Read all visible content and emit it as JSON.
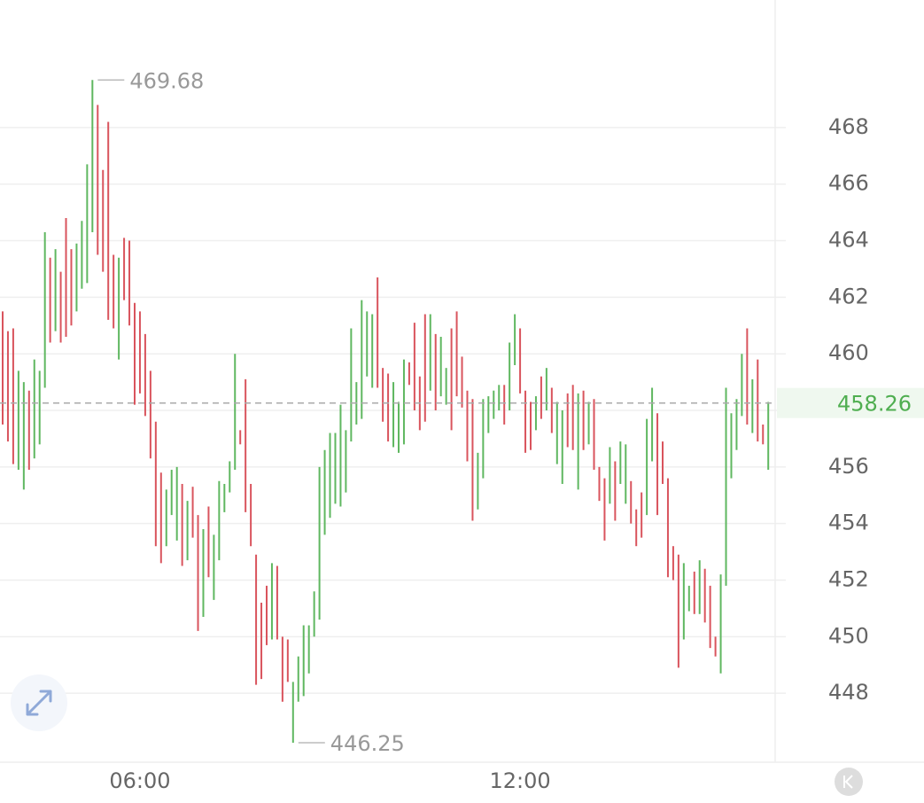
{
  "chart_data": {
    "type": "ohlc-range",
    "categories": [
      null,
      null,
      null,
      null,
      null,
      null,
      null,
      null,
      null,
      null,
      null,
      null,
      null,
      null,
      null,
      null,
      null,
      null,
      null,
      null,
      null,
      null,
      null,
      null,
      null,
      null,
      "06:00",
      null,
      null,
      null,
      null,
      null,
      null,
      null,
      null,
      null,
      null,
      null,
      null,
      null,
      null,
      null,
      null,
      null,
      null,
      null,
      null,
      null,
      null,
      null,
      null,
      null,
      null,
      null,
      null,
      null,
      null,
      null,
      null,
      null,
      null,
      null,
      null,
      null,
      null,
      null,
      null,
      null,
      null,
      null,
      null,
      null,
      null,
      null,
      null,
      null,
      null,
      null,
      null,
      null,
      null,
      null,
      null,
      null,
      null,
      null,
      null,
      null,
      null,
      null,
      null,
      null,
      null,
      null,
      null,
      null,
      null,
      null,
      "12:00",
      null,
      null,
      null,
      null,
      null,
      null,
      null,
      null,
      null,
      null,
      null,
      null,
      null,
      null,
      null,
      null,
      null,
      null,
      null,
      null,
      null,
      null,
      null,
      null,
      null,
      null,
      null,
      null,
      null,
      null,
      null,
      null,
      null,
      null,
      null,
      null,
      null,
      null,
      null,
      null,
      null,
      null,
      null,
      null,
      null,
      null,
      null
    ],
    "high": [
      461.5,
      460.8,
      460.9,
      459.4,
      459.0,
      458.7,
      459.8,
      459.4,
      464.3,
      463.4,
      463.7,
      462.9,
      464.8,
      463.7,
      463.9,
      464.7,
      466.7,
      469.68,
      468.8,
      466.5,
      468.2,
      463.5,
      463.4,
      464.1,
      464.0,
      461.8,
      461.5,
      460.7,
      459.4,
      457.6,
      455.8,
      455.2,
      455.9,
      456.0,
      455.4,
      454.8,
      455.3,
      454.3,
      453.8,
      454.6,
      453.6,
      455.5,
      455.4,
      456.2,
      460.0,
      457.3,
      459.1,
      455.4,
      452.9,
      451.2,
      451.8,
      452.6,
      452.5,
      450.0,
      449.9,
      448.4,
      449.3,
      450.4,
      450.4,
      451.6,
      456.0,
      456.6,
      457.2,
      457.2,
      458.2,
      457.3,
      460.9,
      459.0,
      461.9,
      461.5,
      461.4,
      462.7,
      459.5,
      459.3,
      459.0,
      458.3,
      459.8,
      459.7,
      461.1,
      459.2,
      461.4,
      461.4,
      460.7,
      460.6,
      459.5,
      460.9,
      461.5,
      459.9,
      458.7,
      458.4,
      456.5,
      458.4,
      458.5,
      458.7,
      458.9,
      458.9,
      460.4,
      461.4,
      460.9,
      458.7,
      458.3,
      458.5,
      459.2,
      459.5,
      458.8,
      458.3,
      458.0,
      458.6,
      458.9,
      458.6,
      458.7,
      458.3,
      458.4,
      456.0,
      455.6,
      456.7,
      456.2,
      456.9,
      456.8,
      455.5,
      454.5,
      455.1,
      457.7,
      458.8,
      457.9,
      456.9,
      455.6,
      453.2,
      452.9,
      452.6,
      451.8,
      452.3,
      452.7,
      452.4,
      451.8,
      450.0,
      452.2,
      458.8,
      457.9,
      458.4,
      460.0,
      460.9,
      459.1,
      459.8,
      457.5,
      458.3
    ],
    "low": [
      457.5,
      456.9,
      456.1,
      455.9,
      455.2,
      455.9,
      456.3,
      456.8,
      458.8,
      460.4,
      460.8,
      460.4,
      460.6,
      461.0,
      461.5,
      462.3,
      462.5,
      464.3,
      463.5,
      462.9,
      461.2,
      460.9,
      459.8,
      461.9,
      461.0,
      458.2,
      458.6,
      457.8,
      456.3,
      453.2,
      452.6,
      453.2,
      454.3,
      453.4,
      452.5,
      452.7,
      453.5,
      450.2,
      450.7,
      452.1,
      451.3,
      452.7,
      454.4,
      455.1,
      455.9,
      456.8,
      454.4,
      453.2,
      448.3,
      448.5,
      449.7,
      449.9,
      449.9,
      447.7,
      448.4,
      446.25,
      447.7,
      447.9,
      448.7,
      450.0,
      450.6,
      453.6,
      454.2,
      454.7,
      454.6,
      455.1,
      456.9,
      457.5,
      457.7,
      459.2,
      458.8,
      458.8,
      457.6,
      456.9,
      456.7,
      456.5,
      456.8,
      458.9,
      458.0,
      457.3,
      457.6,
      458.7,
      458.0,
      458.5,
      458.2,
      457.3,
      458.5,
      458.1,
      456.2,
      454.1,
      454.5,
      455.6,
      457.2,
      457.7,
      458.0,
      457.5,
      458.0,
      459.6,
      458.6,
      456.5,
      456.6,
      457.3,
      457.7,
      458.0,
      457.2,
      456.1,
      455.4,
      456.7,
      456.6,
      455.2,
      456.6,
      456.8,
      455.9,
      454.8,
      453.4,
      454.7,
      454.1,
      455.4,
      454.7,
      454.0,
      453.2,
      453.5,
      454.3,
      456.2,
      454.3,
      455.4,
      452.1,
      452.0,
      448.9,
      449.9,
      450.9,
      450.8,
      450.8,
      450.5,
      449.6,
      449.3,
      448.7,
      451.8,
      455.6,
      456.6,
      457.8,
      457.5,
      457.2,
      456.9,
      456.8,
      455.9
    ],
    "up": [
      false,
      false,
      false,
      true,
      true,
      false,
      true,
      true,
      true,
      false,
      true,
      false,
      false,
      false,
      true,
      true,
      true,
      true,
      false,
      false,
      false,
      false,
      true,
      false,
      false,
      false,
      false,
      false,
      false,
      false,
      false,
      true,
      true,
      true,
      false,
      true,
      false,
      false,
      true,
      false,
      true,
      true,
      true,
      true,
      true,
      false,
      false,
      false,
      false,
      false,
      false,
      true,
      false,
      false,
      false,
      true,
      true,
      true,
      true,
      true,
      true,
      true,
      true,
      true,
      true,
      true,
      true,
      true,
      true,
      true,
      true,
      false,
      false,
      false,
      true,
      true,
      true,
      false,
      false,
      false,
      false,
      true,
      false,
      true,
      true,
      false,
      false,
      false,
      false,
      false,
      true,
      true,
      true,
      true,
      true,
      false,
      true,
      true,
      false,
      false,
      false,
      true,
      false,
      true,
      false,
      true,
      true,
      false,
      false,
      true,
      false,
      true,
      false,
      false,
      false,
      true,
      false,
      true,
      true,
      false,
      false,
      false,
      true,
      true,
      false,
      false,
      false,
      false,
      false,
      true,
      true,
      false,
      true,
      false,
      false,
      false,
      true,
      true,
      true,
      true,
      true,
      false,
      true,
      false,
      false,
      true
    ],
    "up_color": "#5fb760",
    "down_color": "#d9545d",
    "last": 458.26,
    "ylim": [
      445.56,
      472.51
    ],
    "yticks": [
      448,
      450,
      452,
      454,
      456,
      458,
      460,
      462,
      464,
      466,
      468
    ],
    "grid": true
  }
}
